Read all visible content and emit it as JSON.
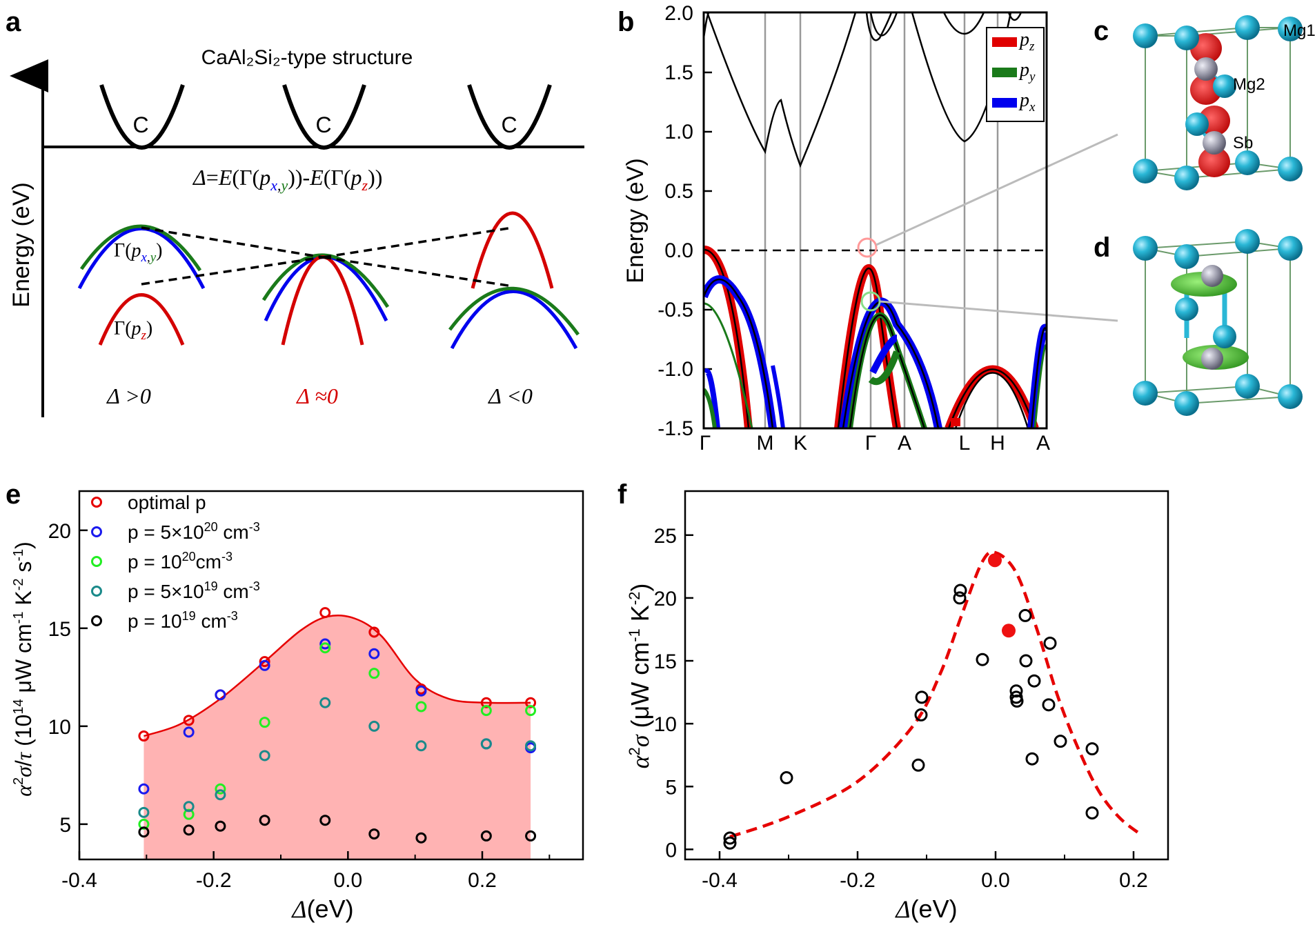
{
  "panel_labels": {
    "a": "a",
    "b": "b",
    "c": "c",
    "d": "d",
    "e": "e",
    "f": "f"
  },
  "colors": {
    "red": "#d40000",
    "green": "#1a7a1a",
    "blue": "#0000ee",
    "fill": "#ffb3b3",
    "teal": "#1a8a8a",
    "lime": "#22ee22",
    "atom": "#2ab7d6",
    "grey": "#9a9aa8"
  },
  "panel_a": {
    "ylabel": "Energy (eV)",
    "title": "CaAl₂Si₂-type structure",
    "cb_label": "C",
    "delta_def": "Δ=E(Γ(pₓ,ᵧ))-E(Γ(p_z))",
    "gamma_pxy": "Γ(pₓ,ᵧ)",
    "gamma_pz": "Γ(p_z)",
    "cases": [
      "Δ >0",
      "Δ ≈0",
      "Δ <0"
    ]
  },
  "panel_b": {
    "ylabel": "Energy (eV)",
    "kpoints": [
      "Γ",
      "M",
      "K",
      "Γ",
      "A",
      "L",
      "H",
      "A"
    ],
    "ylim": [
      -1.5,
      2.0
    ],
    "yticks": [
      "-1.5",
      "-1.0",
      "-0.5",
      "0.0",
      "0.5",
      "1.0",
      "1.5",
      "2.0"
    ],
    "legend": [
      "p_z",
      "p_y",
      "p_x"
    ]
  },
  "panel_cd": {
    "atoms": [
      "Mg1",
      "Mg2",
      "Sb"
    ]
  },
  "chart_data": [
    {
      "panel": "e",
      "type": "scatter",
      "xlabel": "Δ(eV)",
      "ylabel": "α²σ/τ (10¹⁴ μW cm⁻¹ K⁻² s⁻¹)",
      "xlim": [
        -0.4,
        0.35
      ],
      "ylim": [
        3.2,
        22
      ],
      "xticks": [
        "-0.4",
        "-0.2",
        "0.0",
        "0.2"
      ],
      "yticks": [
        "5",
        "10",
        "15",
        "20"
      ],
      "x": [
        -0.304,
        -0.237,
        -0.19,
        -0.124,
        -0.034,
        0.039,
        0.109,
        0.206,
        0.272
      ],
      "series": [
        {
          "name": "optimal p",
          "color": "#e60000",
          "values": [
            9.5,
            10.3,
            11.6,
            13.3,
            15.8,
            14.8,
            11.9,
            11.2,
            11.2
          ]
        },
        {
          "name": "p = 5×10²⁰ cm⁻³",
          "color": "#1a1aee",
          "values": [
            6.8,
            9.7,
            11.6,
            13.1,
            14.2,
            13.7,
            11.8,
            9.1,
            8.9
          ]
        },
        {
          "name": "p = 10²⁰ cm⁻³",
          "color": "#22ee22",
          "values": [
            5.0,
            5.5,
            6.8,
            10.2,
            14.0,
            12.7,
            11.0,
            10.8,
            10.8
          ]
        },
        {
          "name": "p = 5×10¹⁹ cm⁻³",
          "color": "#1a8a8a",
          "values": [
            5.6,
            5.9,
            6.5,
            8.5,
            11.2,
            10.0,
            9.0,
            9.1,
            9.0
          ]
        },
        {
          "name": "p = 10¹⁹ cm⁻³",
          "color": "#000000",
          "values": [
            4.6,
            4.7,
            4.9,
            5.2,
            5.2,
            4.5,
            4.3,
            4.4,
            4.4
          ]
        }
      ],
      "fit_curve": {
        "x": [
          -0.304,
          -0.25,
          -0.19,
          -0.124,
          -0.07,
          -0.03,
          0.01,
          0.05,
          0.1,
          0.15,
          0.206,
          0.272
        ],
        "y": [
          9.5,
          10.1,
          11.4,
          13.3,
          14.9,
          15.6,
          15.5,
          14.6,
          12.4,
          11.4,
          11.2,
          11.2
        ]
      }
    },
    {
      "panel": "f",
      "type": "scatter",
      "xlabel": "Δ(eV)",
      "ylabel": "α²σ (μW cm⁻¹ K⁻²)",
      "xlim": [
        -0.45,
        0.25
      ],
      "ylim": [
        -0.8,
        28.5
      ],
      "xticks": [
        "-0.4",
        "-0.2",
        "0.0",
        "0.2"
      ],
      "yticks": [
        "0",
        "5",
        "10",
        "15",
        "20",
        "25"
      ],
      "open_points": {
        "x": [
          -0.385,
          -0.385,
          -0.303,
          -0.112,
          -0.108,
          -0.107,
          -0.052,
          -0.051,
          -0.019,
          0.03,
          0.03,
          0.031,
          0.043,
          0.044,
          0.053,
          0.056,
          0.077,
          0.079,
          0.094,
          0.14,
          0.14
        ],
        "y": [
          0.5,
          0.9,
          5.7,
          6.7,
          10.7,
          12.1,
          20.0,
          20.6,
          15.1,
          12.6,
          12.1,
          11.8,
          18.6,
          15.0,
          7.2,
          13.4,
          11.5,
          16.4,
          8.6,
          2.9,
          8.0
        ]
      },
      "filled_points": {
        "x": [
          -0.001,
          0.019
        ],
        "y": [
          23.0,
          17.4
        ],
        "color": "#ee1111"
      },
      "fit_curve": {
        "x": [
          -0.385,
          -0.3,
          -0.2,
          -0.12,
          -0.08,
          -0.05,
          -0.02,
          0.0,
          0.03,
          0.06,
          0.09,
          0.12,
          0.15,
          0.18,
          0.21
        ],
        "y": [
          1.0,
          2.6,
          5.4,
          9.8,
          14.0,
          18.5,
          22.8,
          23.6,
          22.0,
          17.5,
          12.2,
          8.0,
          4.6,
          2.5,
          1.2
        ]
      }
    }
  ]
}
